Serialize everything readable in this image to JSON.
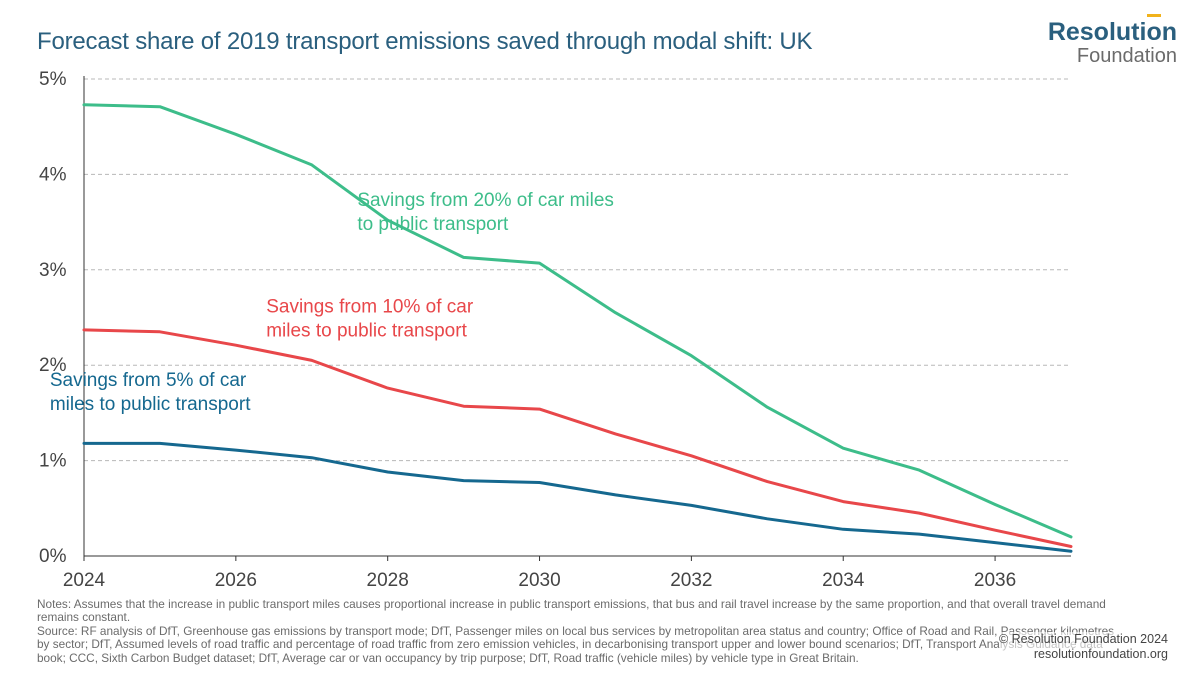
{
  "title": "Forecast share of 2019 transport emissions saved through modal shift: UK",
  "logo": {
    "top": "Resolution",
    "bottom": "Foundation"
  },
  "colors": {
    "green": "#3dbd8a",
    "red": "#e8474a",
    "blue": "#15688f",
    "text": "#444444",
    "grid": "#b8b8b8",
    "axis": "#333333"
  },
  "chart_data": {
    "type": "line",
    "title": "Forecast share of 2019 transport emissions saved through modal shift: UK",
    "xlabel": "",
    "ylabel": "",
    "xlim": [
      2024,
      2037
    ],
    "ylim": [
      0,
      5
    ],
    "grid": "horizontal dashed",
    "x": [
      2024,
      2025,
      2026,
      2027,
      2028,
      2029,
      2030,
      2031,
      2032,
      2033,
      2034,
      2035,
      2036,
      2037
    ],
    "x_ticks": [
      {
        "value": 2024,
        "label": "2024"
      },
      {
        "value": 2026,
        "label": "2026"
      },
      {
        "value": 2028,
        "label": "2028"
      },
      {
        "value": 2030,
        "label": "2030"
      },
      {
        "value": 2032,
        "label": "2032"
      },
      {
        "value": 2034,
        "label": "2034"
      },
      {
        "value": 2036,
        "label": "2036"
      }
    ],
    "y_ticks": [
      {
        "value": 0,
        "label": "0%"
      },
      {
        "value": 1,
        "label": "1%"
      },
      {
        "value": 2,
        "label": "2%"
      },
      {
        "value": 3,
        "label": "3%"
      },
      {
        "value": 4,
        "label": "4%"
      },
      {
        "value": 5,
        "label": "5%"
      }
    ],
    "series": [
      {
        "name": "Savings from 20% of car miles to public transport",
        "label_lines": [
          "Savings from 20% of car miles",
          "to public transport"
        ],
        "label_anchor": {
          "x": 2027.6,
          "y": 3.67
        },
        "color": "#3dbd8a",
        "values": [
          4.73,
          4.71,
          4.42,
          4.1,
          3.52,
          3.13,
          3.07,
          2.55,
          2.1,
          1.56,
          1.13,
          0.9,
          0.54,
          0.2
        ]
      },
      {
        "name": "Savings from 10% of car miles to public transport",
        "label_lines": [
          "Savings from 10% of car",
          "miles to public transport"
        ],
        "label_anchor": {
          "x": 2026.4,
          "y": 2.55
        },
        "color": "#e8474a",
        "values": [
          2.37,
          2.35,
          2.21,
          2.05,
          1.76,
          1.57,
          1.54,
          1.28,
          1.05,
          0.78,
          0.57,
          0.45,
          0.27,
          0.1
        ]
      },
      {
        "name": "Savings from 5% of car miles to public transport",
        "label_lines": [
          "Savings from 5% of car",
          "miles to public transport"
        ],
        "label_anchor": {
          "x": 2023.55,
          "y": 1.78
        },
        "color": "#15688f",
        "values": [
          1.18,
          1.18,
          1.11,
          1.03,
          0.88,
          0.79,
          0.77,
          0.64,
          0.53,
          0.39,
          0.28,
          0.23,
          0.14,
          0.05
        ]
      }
    ]
  },
  "notes": {
    "notes_text": "Notes: Assumes that the increase in public transport miles causes proportional increase in public transport emissions, that bus and rail travel increase by the same proportion, and that overall travel demand remains constant.",
    "source_text": "Source: RF analysis of DfT, Greenhouse gas emissions by transport mode; DfT, Passenger miles on local bus services by metropolitan area status and country; Office of Road and Rail, Passenger kilometres by sector; DfT, Assumed levels of road traffic and percentage of road traffic from zero emission vehicles, in decarbonising transport upper and lower bound scenarios; DfT, Transport Analysis Guidance data book; CCC, Sixth Carbon Budget dataset; DfT, Average car or van occupancy by trip purpose; DfT, Road traffic (vehicle miles) by vehicle type in Great Britain."
  },
  "credit": {
    "copyright": "© Resolution Foundation 2024",
    "website": "resolutionfoundation.org"
  }
}
